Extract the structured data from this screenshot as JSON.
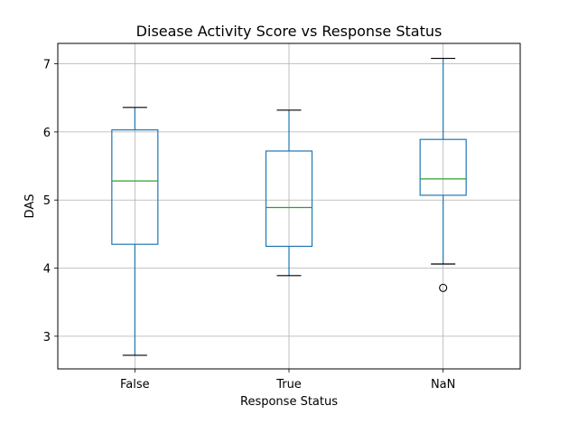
{
  "chart_data": {
    "type": "box",
    "title": "Disease Activity Score vs Response Status",
    "xlabel": "Response Status",
    "ylabel": "DAS",
    "ylim": [
      2.52,
      7.3
    ],
    "yticks": [
      3,
      4,
      5,
      6,
      7
    ],
    "grid": true,
    "categories": [
      "False",
      "True",
      "NaN"
    ],
    "boxes": [
      {
        "category": "False",
        "whisker_low": 2.72,
        "q1": 4.35,
        "median": 5.28,
        "q3": 6.03,
        "whisker_high": 6.36,
        "outliers": []
      },
      {
        "category": "True",
        "whisker_low": 3.89,
        "q1": 4.32,
        "median": 4.89,
        "q3": 5.72,
        "whisker_high": 6.32,
        "outliers": []
      },
      {
        "category": "NaN",
        "whisker_low": 4.06,
        "q1": 5.07,
        "median": 5.31,
        "q3": 5.89,
        "whisker_high": 7.08,
        "outliers": [
          3.71
        ]
      }
    ],
    "colors": {
      "box": "#1f77b4",
      "median": "#2ca02c",
      "whisker_cap": "#000000",
      "grid": "#b0b0b0"
    }
  }
}
